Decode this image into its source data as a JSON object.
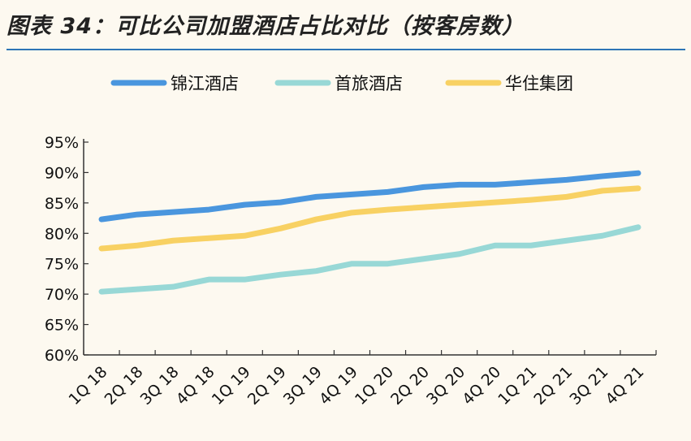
{
  "title": "图表 34：可比公司加盟酒店占比对比（按客房数）",
  "chart_data": {
    "type": "line",
    "title": "图表 34：可比公司加盟酒店占比对比（按客房数）",
    "xlabel": "",
    "ylabel": "",
    "categories": [
      "1Q18",
      "2Q18",
      "3Q18",
      "4Q18",
      "1Q19",
      "2Q19",
      "3Q19",
      "4Q19",
      "1Q20",
      "2Q20",
      "3Q20",
      "4Q20",
      "1Q21",
      "2Q21",
      "3Q21",
      "4Q21"
    ],
    "x_tick_labels": [
      "1Q 18",
      "2Q 18",
      "3Q 18",
      "4Q 18",
      "1Q 19",
      "2Q 19",
      "3Q 19",
      "4Q 19",
      "1Q 20",
      "2Q 20",
      "3Q 20",
      "4Q 20",
      "1Q 21",
      "2Q 21",
      "3Q 21",
      "4Q 21"
    ],
    "ylim": [
      60,
      95
    ],
    "y_ticks": [
      "60%",
      "65%",
      "70%",
      "75%",
      "80%",
      "85%",
      "90%",
      "95%"
    ],
    "y_tick_values": [
      60,
      65,
      70,
      75,
      80,
      85,
      90,
      95
    ],
    "legend_position": "top",
    "grid": false,
    "series": [
      {
        "name": "锦江酒店",
        "color": "#4a96de",
        "values": [
          82.3,
          83.1,
          83.5,
          83.9,
          84.7,
          85.1,
          86.0,
          86.4,
          86.8,
          87.6,
          88.0,
          88.0,
          88.4,
          88.8,
          89.4,
          89.9
        ]
      },
      {
        "name": "首旅酒店",
        "color": "#98d8d6",
        "values": [
          70.4,
          70.8,
          71.2,
          72.4,
          72.4,
          73.2,
          73.8,
          75.0,
          75.0,
          75.8,
          76.6,
          78.0,
          78.0,
          78.8,
          79.6,
          81.0
        ]
      },
      {
        "name": "华住集团",
        "color": "#f8d163",
        "values": [
          77.5,
          78.0,
          78.8,
          79.2,
          79.6,
          80.8,
          82.3,
          83.4,
          83.9,
          84.3,
          84.7,
          85.1,
          85.5,
          86.0,
          87.0,
          87.4
        ]
      }
    ]
  }
}
